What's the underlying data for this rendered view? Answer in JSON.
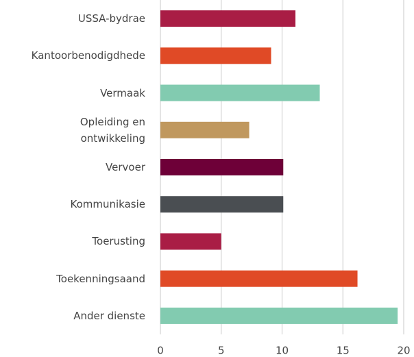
{
  "chart_data": {
    "type": "barh",
    "categories": [
      "USSA-bydrae",
      "Kantoorbenodigdhede",
      "Vermaak",
      "Opleiding en\nontwikkeling",
      "Vervoer",
      "Kommunikasie",
      "Toerusting",
      "Toekenningsaand",
      "Ander dienste"
    ],
    "values": [
      11.1,
      9.1,
      13.1,
      7.3,
      10.1,
      10.1,
      5.0,
      16.2,
      19.5
    ],
    "colors": [
      "#a91d45",
      "#e04a26",
      "#82cbb0",
      "#c0985e",
      "#6e0038",
      "#4a4e52",
      "#a91d45",
      "#e04a26",
      "#82cbb0"
    ],
    "xlim": [
      0,
      20
    ],
    "xticks": [
      0,
      5,
      10,
      15,
      20
    ],
    "grid": true
  }
}
